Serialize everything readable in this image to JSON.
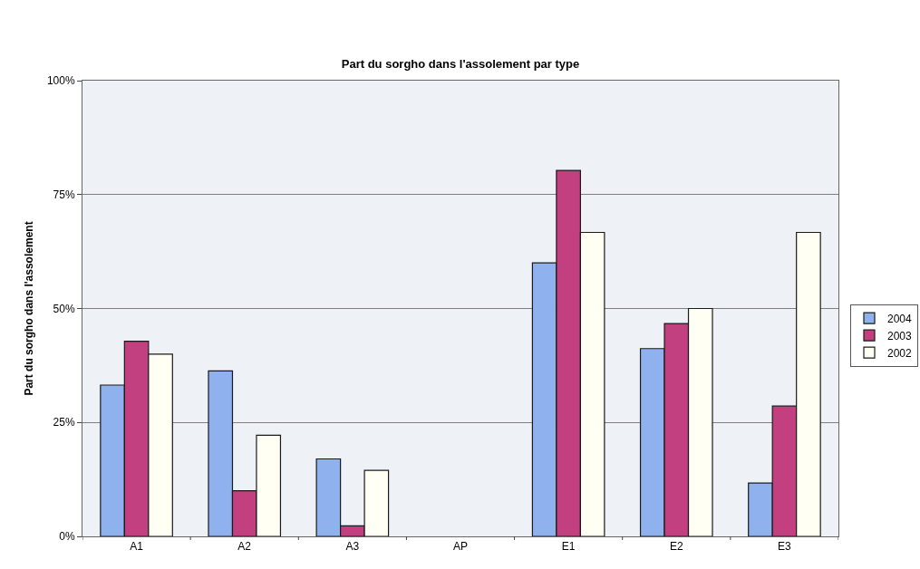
{
  "chart_data": {
    "type": "bar",
    "title": "Part du sorgho dans l'assolement par type",
    "ylabel": "Part du sorgho dans l'assolement",
    "categories": [
      "A1",
      "A2",
      "A3",
      "AP",
      "E1",
      "E2",
      "E3"
    ],
    "series": [
      {
        "name": "2004",
        "color": "#8fb2ee",
        "values": [
          33.2,
          36.3,
          17,
          null,
          60,
          41.2,
          11.7
        ]
      },
      {
        "name": "2003",
        "color": "#c2407f",
        "values": [
          42.8,
          10,
          2.3,
          null,
          80.3,
          46.7,
          28.6
        ]
      },
      {
        "name": "2002",
        "color": "#fffff4",
        "values": [
          40,
          22.2,
          14.5,
          null,
          66.7,
          50,
          66.7
        ]
      }
    ],
    "ylim": [
      0,
      100
    ],
    "yticks": [
      {
        "value": 0,
        "label": "0%"
      },
      {
        "value": 25,
        "label": "25%"
      },
      {
        "value": 50,
        "label": "50%"
      },
      {
        "value": 75,
        "label": "75%"
      },
      {
        "value": 100,
        "label": "100%"
      }
    ],
    "grid": "y",
    "legend": "right"
  }
}
